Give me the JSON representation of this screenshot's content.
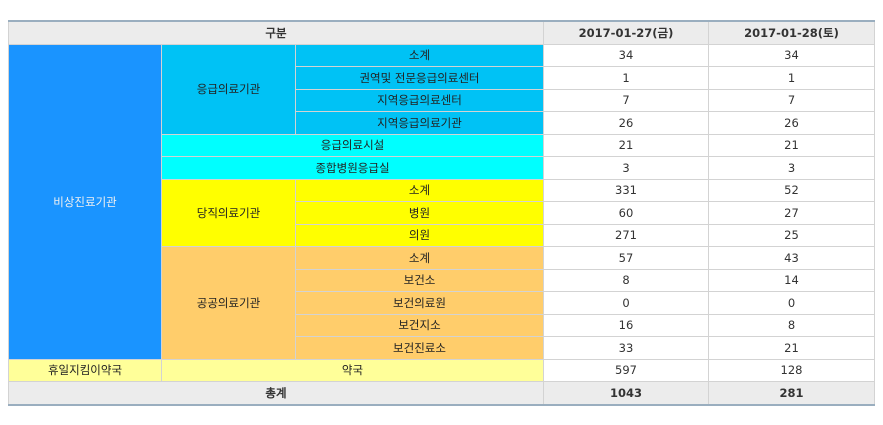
{
  "header": {
    "category": "구분",
    "date1": "2017-01-27(금)",
    "date2": "2017-01-28(토)"
  },
  "groups": {
    "emergency_institution": "비상진료기관",
    "emergency_medical": "응급의료기관",
    "on_duty": "당직의료기관",
    "public": "공공의료기관",
    "holiday_pharmacy": "휴일지킴이약국"
  },
  "rows": [
    {
      "label": "소계",
      "v1": "34",
      "v2": "34"
    },
    {
      "label": "권역및 전문응급의료센터",
      "v1": "1",
      "v2": "1"
    },
    {
      "label": "지역응급의료센터",
      "v1": "7",
      "v2": "7"
    },
    {
      "label": "지역응급의료기관",
      "v1": "26",
      "v2": "26"
    },
    {
      "label": "응급의료시설",
      "v1": "21",
      "v2": "21"
    },
    {
      "label": "종합병원응급실",
      "v1": "3",
      "v2": "3"
    },
    {
      "label": "소계",
      "v1": "331",
      "v2": "52"
    },
    {
      "label": "병원",
      "v1": "60",
      "v2": "27"
    },
    {
      "label": "의원",
      "v1": "271",
      "v2": "25"
    },
    {
      "label": "소계",
      "v1": "57",
      "v2": "43"
    },
    {
      "label": "보건소",
      "v1": "8",
      "v2": "14"
    },
    {
      "label": "보건의료원",
      "v1": "0",
      "v2": "0"
    },
    {
      "label": "보건지소",
      "v1": "16",
      "v2": "8"
    },
    {
      "label": "보건진료소",
      "v1": "33",
      "v2": "21"
    },
    {
      "label": "약국",
      "v1": "597",
      "v2": "128"
    }
  ],
  "total": {
    "label": "총계",
    "v1": "1043",
    "v2": "281"
  },
  "colors": {
    "header_bg": "#ececec",
    "emergency_institution": "#1a94ff",
    "emergency_medical": "#00c2f5",
    "emergency_facility": "#00ffff",
    "on_duty": "#ffff00",
    "public": "#ffcd6b",
    "pharmacy": "#ffff99",
    "top_border": "#9aaebf"
  }
}
